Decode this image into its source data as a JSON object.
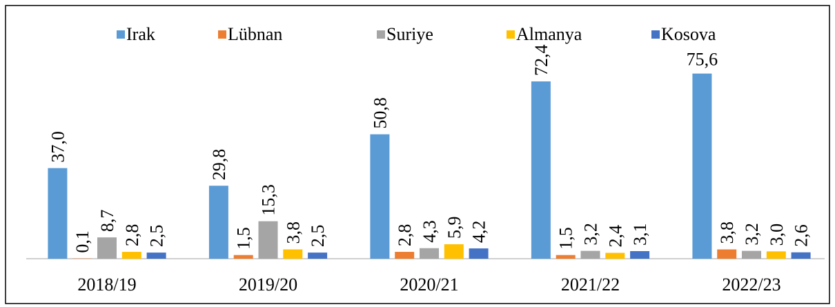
{
  "chart_data": {
    "type": "bar",
    "categories": [
      "2018/19",
      "2019/20",
      "2020/21",
      "2021/22",
      "2022/23"
    ],
    "series": [
      {
        "name": "Irak",
        "color": "#5b9bd5",
        "values": [
          37.0,
          29.8,
          50.8,
          72.4,
          75.6
        ],
        "value_labels": [
          "37,0",
          "29,8",
          "50,8",
          "72,4",
          "75,6"
        ]
      },
      {
        "name": "Lübnan",
        "color": "#ed7d31",
        "values": [
          0.1,
          1.5,
          2.8,
          1.5,
          3.8
        ],
        "value_labels": [
          "0,1",
          "1,5",
          "2,8",
          "1,5",
          "3,8"
        ]
      },
      {
        "name": "Suriye",
        "color": "#a5a5a5",
        "values": [
          8.7,
          15.3,
          4.3,
          3.2,
          3.2
        ],
        "value_labels": [
          "8,7",
          "15,3",
          "4,3",
          "3,2",
          "3,2"
        ]
      },
      {
        "name": "Almanya",
        "color": "#ffc000",
        "values": [
          2.8,
          3.8,
          5.9,
          2.4,
          3.0
        ],
        "value_labels": [
          "2,8",
          "3,8",
          "5,9",
          "2,4",
          "3,0"
        ]
      },
      {
        "name": "Kosova",
        "color": "#4472c4",
        "values": [
          2.5,
          2.5,
          4.2,
          3.1,
          2.6
        ],
        "value_labels": [
          "2,5",
          "2,5",
          "4,2",
          "3,1",
          "2,6"
        ]
      }
    ],
    "legend": "top"
  }
}
